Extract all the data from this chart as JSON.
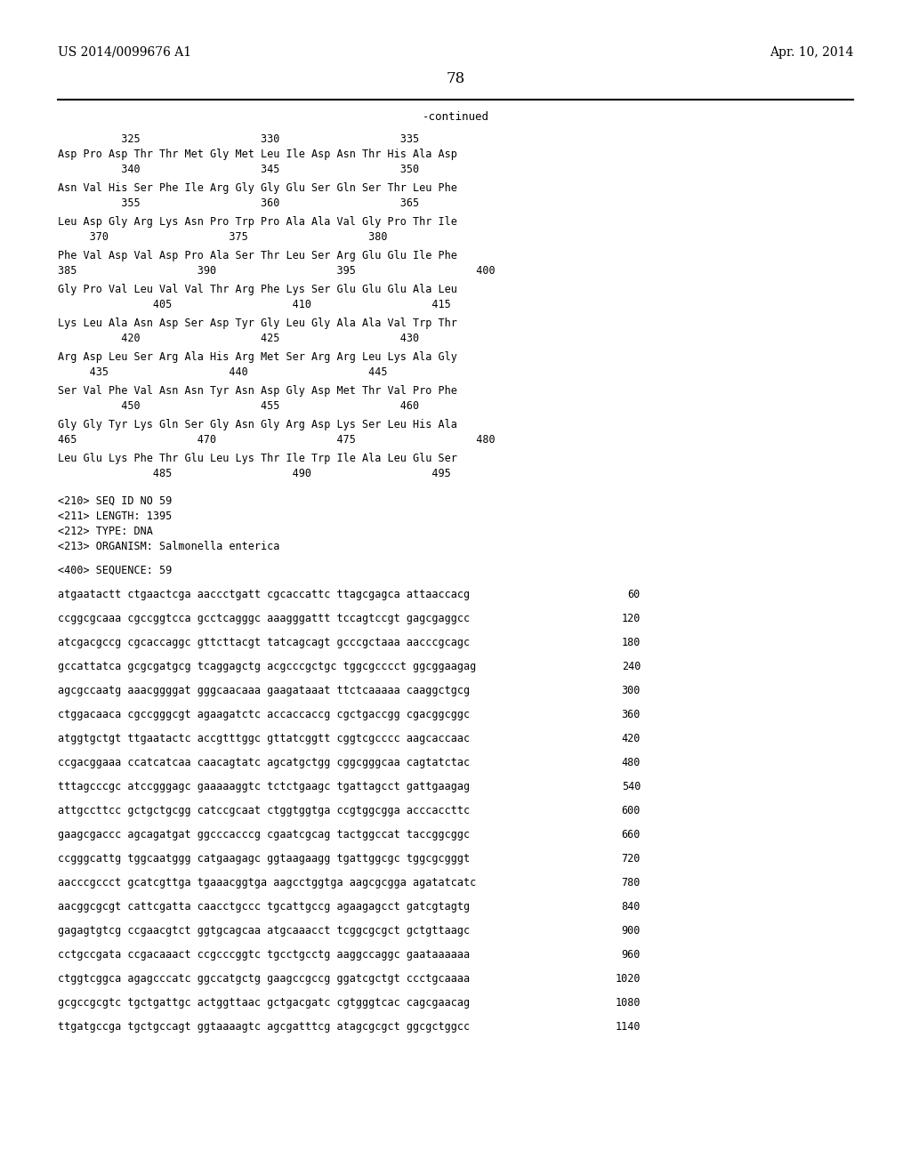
{
  "patent_number": "US 2014/0099676 A1",
  "date": "Apr. 10, 2014",
  "page_number": "78",
  "continued_label": "-continued",
  "bg_color": "#ffffff",
  "text_color": "#000000",
  "content": [
    {
      "type": "ruler",
      "text": "          325                   330                   335"
    },
    {
      "type": "seq",
      "text": "Asp Pro Asp Thr Thr Met Gly Met Leu Ile Asp Asn Thr His Ala Asp"
    },
    {
      "type": "num",
      "text": "          340                   345                   350"
    },
    {
      "type": "seq",
      "text": "Asn Val His Ser Phe Ile Arg Gly Gly Glu Ser Gln Ser Thr Leu Phe"
    },
    {
      "type": "num",
      "text": "          355                   360                   365"
    },
    {
      "type": "seq",
      "text": "Leu Asp Gly Arg Lys Asn Pro Trp Pro Ala Ala Val Gly Pro Thr Ile"
    },
    {
      "type": "num",
      "text": "     370                   375                   380"
    },
    {
      "type": "seq",
      "text": "Phe Val Asp Val Asp Pro Ala Ser Thr Leu Ser Arg Glu Glu Ile Phe"
    },
    {
      "type": "num",
      "text": "385                   390                   395                   400"
    },
    {
      "type": "seq",
      "text": "Gly Pro Val Leu Val Val Thr Arg Phe Lys Ser Glu Glu Glu Ala Leu"
    },
    {
      "type": "num",
      "text": "               405                   410                   415"
    },
    {
      "type": "seq",
      "text": "Lys Leu Ala Asn Asp Ser Asp Tyr Gly Leu Gly Ala Ala Val Trp Thr"
    },
    {
      "type": "num",
      "text": "          420                   425                   430"
    },
    {
      "type": "seq",
      "text": "Arg Asp Leu Ser Arg Ala His Arg Met Ser Arg Arg Leu Lys Ala Gly"
    },
    {
      "type": "num",
      "text": "     435                   440                   445"
    },
    {
      "type": "seq",
      "text": "Ser Val Phe Val Asn Asn Tyr Asn Asp Gly Asp Met Thr Val Pro Phe"
    },
    {
      "type": "num",
      "text": "          450                   455                   460"
    },
    {
      "type": "seq",
      "text": "Gly Gly Tyr Lys Gln Ser Gly Asn Gly Arg Asp Lys Ser Leu His Ala"
    },
    {
      "type": "num",
      "text": "465                   470                   475                   480"
    },
    {
      "type": "seq",
      "text": "Leu Glu Lys Phe Thr Glu Leu Lys Thr Ile Trp Ile Ala Leu Glu Ser"
    },
    {
      "type": "num",
      "text": "               485                   490                   495"
    },
    {
      "type": "blank"
    },
    {
      "type": "meta",
      "text": "<210> SEQ ID NO 59"
    },
    {
      "type": "meta",
      "text": "<211> LENGTH: 1395"
    },
    {
      "type": "meta",
      "text": "<212> TYPE: DNA"
    },
    {
      "type": "meta",
      "text": "<213> ORGANISM: Salmonella enterica"
    },
    {
      "type": "blank"
    },
    {
      "type": "meta",
      "text": "<400> SEQUENCE: 59"
    },
    {
      "type": "blank"
    },
    {
      "type": "dna",
      "text": "atgaatactt ctgaactcga aaccctgatt cgcaccattc ttagcgagca attaaccacg",
      "num": "60"
    },
    {
      "type": "blank"
    },
    {
      "type": "dna",
      "text": "ccggcgcaaa cgccggtcca gcctcagggc aaagggattt tccagtccgt gagcgaggcc",
      "num": "120"
    },
    {
      "type": "blank"
    },
    {
      "type": "dna",
      "text": "atcgacgccg cgcaccaggc gttcttacgt tatcagcagt gcccgctaaa aacccgcagc",
      "num": "180"
    },
    {
      "type": "blank"
    },
    {
      "type": "dna",
      "text": "gccattatca gcgcgatgcg tcaggagctg acgcccgctgc tggcgcccct ggcggaagag",
      "num": "240"
    },
    {
      "type": "blank"
    },
    {
      "type": "dna",
      "text": "agcgccaatg aaacggggat gggcaacaaa gaagataaat ttctcaaaaa caaggctgcg",
      "num": "300"
    },
    {
      "type": "blank"
    },
    {
      "type": "dna",
      "text": "ctggacaaca cgccgggcgt agaagatctc accaccaccg cgctgaccgg cgacggcggc",
      "num": "360"
    },
    {
      "type": "blank"
    },
    {
      "type": "dna",
      "text": "atggtgctgt ttgaatactc accgtttggc gttatcggtt cggtcgcccc aagcaccaac",
      "num": "420"
    },
    {
      "type": "blank"
    },
    {
      "type": "dna",
      "text": "ccgacggaaa ccatcatcaa caacagtatc agcatgctgg cggcgggcaa cagtatctac",
      "num": "480"
    },
    {
      "type": "blank"
    },
    {
      "type": "dna",
      "text": "tttagcccgc atccgggagc gaaaaaggtc tctctgaagc tgattagcct gattgaagag",
      "num": "540"
    },
    {
      "type": "blank"
    },
    {
      "type": "dna",
      "text": "attgccttcc gctgctgcgg catccgcaat ctggtggtga ccgtggcgga acccaccttc",
      "num": "600"
    },
    {
      "type": "blank"
    },
    {
      "type": "dna",
      "text": "gaagcgaccc agcagatgat ggcccacccg cgaatcgcag tactggccat taccggcggc",
      "num": "660"
    },
    {
      "type": "blank"
    },
    {
      "type": "dna",
      "text": "ccgggcattg tggcaatggg catgaagagc ggtaagaagg tgattggcgc tggcgcgggt",
      "num": "720"
    },
    {
      "type": "blank"
    },
    {
      "type": "dna",
      "text": "aacccgccct gcatcgttga tgaaacggtga aagcctggtga aagcgcgga agatatcatc",
      "num": "780"
    },
    {
      "type": "blank"
    },
    {
      "type": "dna",
      "text": "aacggcgcgt cattcgatta caacctgccc tgcattgccg agaagagcct gatcgtagtg",
      "num": "840"
    },
    {
      "type": "blank"
    },
    {
      "type": "dna",
      "text": "gagagtgtcg ccgaacgtct ggtgcagcaa atgcaaacct tcggcgcgct gctgttaagc",
      "num": "900"
    },
    {
      "type": "blank"
    },
    {
      "type": "dna",
      "text": "cctgccgata ccgacaaact ccgcccggtc tgcctgcctg aaggccaggc gaataaaaaa",
      "num": "960"
    },
    {
      "type": "blank"
    },
    {
      "type": "dna",
      "text": "ctggtcggca agagcccatc ggccatgctg gaagccgccg ggatcgctgt ccctgcaaaa",
      "num": "1020"
    },
    {
      "type": "blank"
    },
    {
      "type": "dna",
      "text": "gcgccgcgtc tgctgattgc actggttaac gctgacgatc cgtgggtcac cagcgaacag",
      "num": "1080"
    },
    {
      "type": "blank"
    },
    {
      "type": "dna",
      "text": "ttgatgccga tgctgccagt ggtaaaagtc agcgatttcg atagcgcgct ggcgctggcc",
      "num": "1140"
    }
  ]
}
